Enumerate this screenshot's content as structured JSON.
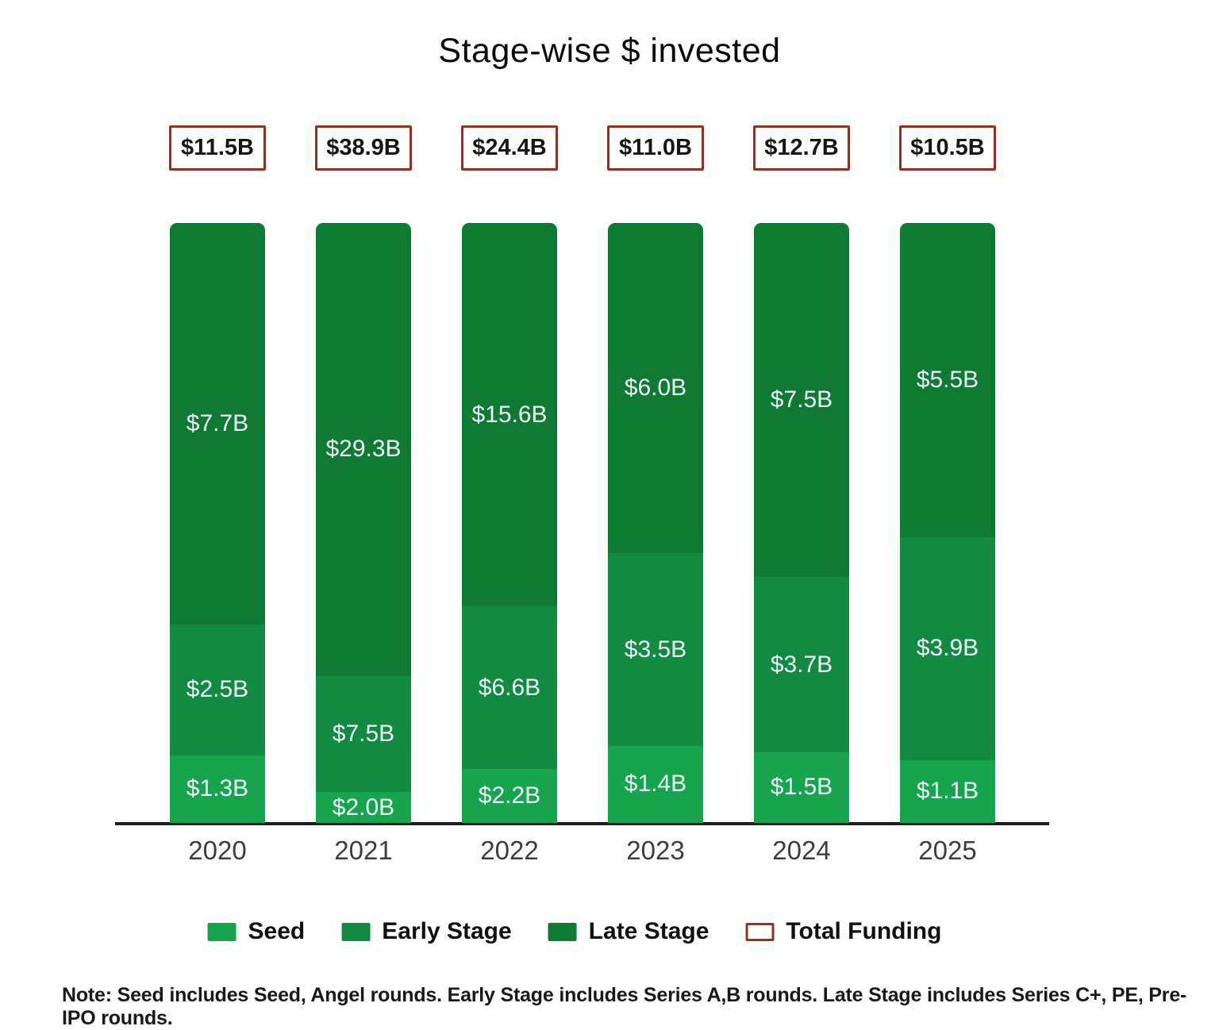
{
  "title": "Stage-wise $ invested",
  "note": "Note: Seed includes Seed, Angel rounds. Early Stage includes Series A,B rounds. Late Stage includes Series C+, PE, Pre-IPO rounds.",
  "chart_data": {
    "type": "bar",
    "stacking": "percent",
    "title": "Stage-wise $ invested",
    "categories": [
      "2020",
      "2021",
      "2022",
      "2023",
      "2024",
      "2025"
    ],
    "series": [
      {
        "name": "Seed",
        "color": "#17a44c",
        "values": [
          1.3,
          2.0,
          2.2,
          1.4,
          1.5,
          1.1
        ],
        "labels": [
          "$1.3B",
          "$2.0B",
          "$2.2B",
          "$1.4B",
          "$1.5B",
          "$1.1B"
        ]
      },
      {
        "name": "Early Stage",
        "color": "#128a40",
        "values": [
          2.5,
          7.5,
          6.6,
          3.5,
          3.7,
          3.9
        ],
        "labels": [
          "$2.5B",
          "$7.5B",
          "$6.6B",
          "$3.5B",
          "$3.7B",
          "$3.9B"
        ]
      },
      {
        "name": "Late Stage",
        "color": "#0f7a31",
        "values": [
          7.7,
          29.3,
          15.6,
          6.0,
          7.5,
          5.5
        ],
        "labels": [
          "$7.7B",
          "$29.3B",
          "$15.6B",
          "$6.0B",
          "$7.5B",
          "$5.5B"
        ]
      }
    ],
    "totals": {
      "name": "Total Funding",
      "border_color": "#97311f",
      "values": [
        11.5,
        38.9,
        24.4,
        11.0,
        12.7,
        10.5
      ],
      "labels": [
        "$11.5B",
        "$38.9B",
        "$24.4B",
        "$11.0B",
        "$12.7B",
        "$10.5B"
      ]
    },
    "legend": [
      "Seed",
      "Early Stage",
      "Late Stage",
      "Total Funding"
    ],
    "legend_position": "bottom",
    "grid": false
  }
}
